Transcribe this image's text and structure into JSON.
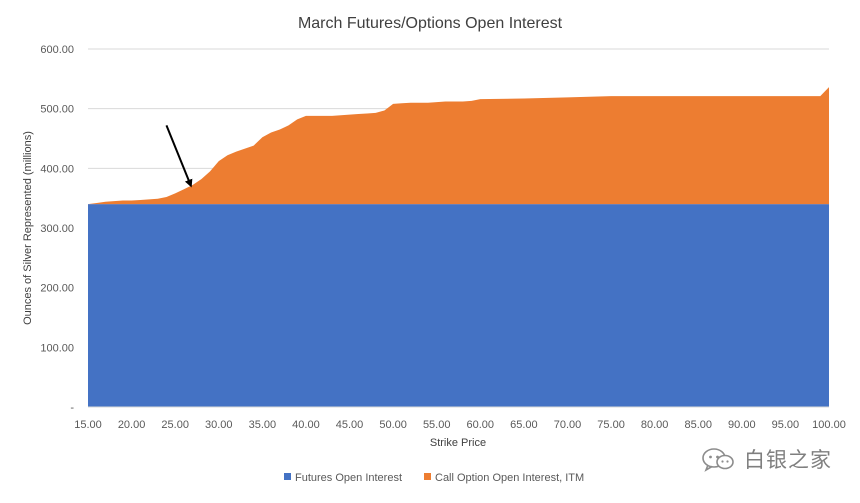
{
  "chart_data": {
    "type": "area",
    "title": "March Futures/Options Open Interest",
    "xlabel": "Strike Price",
    "ylabel": "Ounces of Silver Represented (millions)",
    "xlim": [
      15,
      100
    ],
    "ylim": [
      0,
      600
    ],
    "x_ticks": [
      "15.00",
      "20.00",
      "25.00",
      "30.00",
      "35.00",
      "40.00",
      "45.00",
      "50.00",
      "55.00",
      "60.00",
      "65.00",
      "70.00",
      "75.00",
      "80.00",
      "85.00",
      "90.00",
      "95.00",
      "100.00"
    ],
    "y_ticks": [
      "-",
      "100.00",
      "200.00",
      "300.00",
      "400.00",
      "500.00",
      "600.00"
    ],
    "grid": "horizontal",
    "legend_position": "bottom",
    "stacked": true,
    "series": [
      {
        "name": "Futures Open Interest",
        "color": "#4472c4",
        "points": [
          [
            15,
            340
          ],
          [
            100,
            340
          ]
        ]
      },
      {
        "name": "Call Option Open Interest, ITM",
        "color": "#ed7d31",
        "points": [
          [
            15,
            0
          ],
          [
            16,
            2
          ],
          [
            17,
            4
          ],
          [
            18,
            5
          ],
          [
            19,
            6
          ],
          [
            20,
            6
          ],
          [
            21,
            7
          ],
          [
            22,
            8
          ],
          [
            23,
            9
          ],
          [
            24,
            12
          ],
          [
            25,
            18
          ],
          [
            26,
            25
          ],
          [
            27,
            32
          ],
          [
            28,
            42
          ],
          [
            29,
            55
          ],
          [
            30,
            72
          ],
          [
            31,
            82
          ],
          [
            32,
            88
          ],
          [
            33,
            93
          ],
          [
            34,
            98
          ],
          [
            35,
            112
          ],
          [
            36,
            120
          ],
          [
            37,
            125
          ],
          [
            38,
            132
          ],
          [
            39,
            142
          ],
          [
            40,
            148
          ],
          [
            41,
            148
          ],
          [
            42,
            148
          ],
          [
            43,
            148
          ],
          [
            44,
            149
          ],
          [
            45,
            150
          ],
          [
            46,
            151
          ],
          [
            47,
            152
          ],
          [
            48,
            153
          ],
          [
            49,
            157
          ],
          [
            50,
            168
          ],
          [
            51,
            169
          ],
          [
            52,
            170
          ],
          [
            53,
            170
          ],
          [
            54,
            170
          ],
          [
            55,
            171
          ],
          [
            56,
            172
          ],
          [
            57,
            172
          ],
          [
            58,
            172
          ],
          [
            59,
            173
          ],
          [
            60,
            176
          ],
          [
            65,
            177
          ],
          [
            70,
            179
          ],
          [
            75,
            181
          ],
          [
            80,
            181
          ],
          [
            85,
            181
          ],
          [
            90,
            181
          ],
          [
            95,
            181
          ],
          [
            99,
            181
          ],
          [
            100,
            196
          ]
        ]
      }
    ],
    "annotations": [
      {
        "type": "arrow",
        "from": [
          24.0,
          472
        ],
        "to": [
          26.8,
          371
        ]
      }
    ]
  },
  "watermark": {
    "text": "白银之家",
    "icon": "wechat-icon"
  }
}
